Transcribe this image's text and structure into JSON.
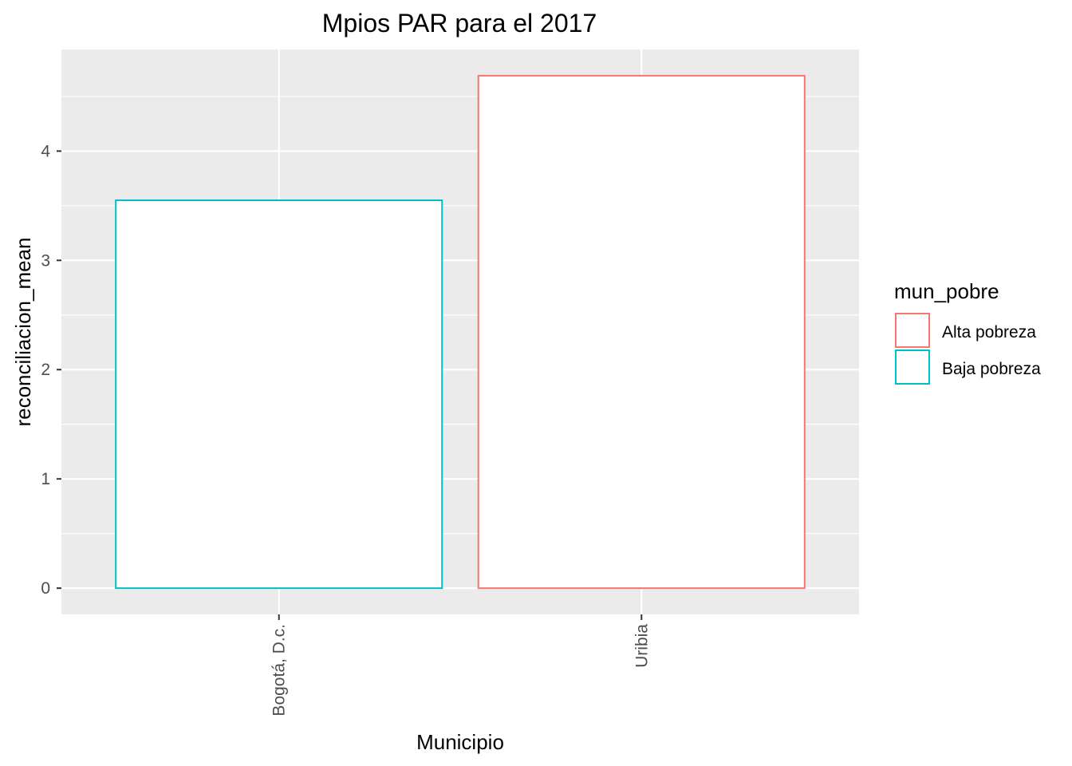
{
  "chart_data": {
    "type": "bar",
    "title": "Mpios PAR para el 2017",
    "xlabel": "Municipio",
    "ylabel": "reconciliacion_mean",
    "categories": [
      "Bogotá, D.c.",
      "Uribia"
    ],
    "values": [
      3.55,
      4.69
    ],
    "bar_groups": [
      "Baja pobreza",
      "Alta pobreza"
    ],
    "ylim": [
      -0.24,
      4.93
    ],
    "yticks": [
      0,
      1,
      2,
      3,
      4
    ],
    "grid": true,
    "legend": {
      "title": "mun_pobre",
      "placement": "right",
      "entries": [
        {
          "label": "Alta pobreza",
          "color": "#F8766D"
        },
        {
          "label": "Baja pobreza",
          "color": "#00BFC4"
        }
      ]
    },
    "colors": {
      "panel": "#EBEBEB",
      "grid": "#FFFFFF",
      "bar_fill": "#FFFFFF"
    }
  }
}
